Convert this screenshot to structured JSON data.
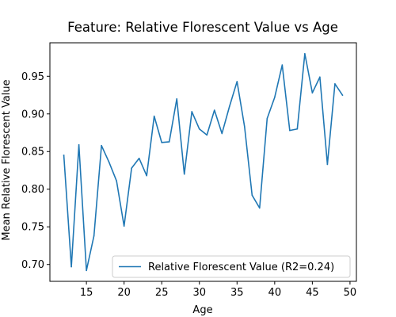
{
  "chart_data": {
    "type": "line",
    "title": "Feature: Relative Florescent Value vs Age",
    "xlabel": "Age",
    "ylabel": "Mean Relative Florescent Value",
    "xlim": [
      10.15,
      50.85
    ],
    "ylim": [
      0.6776,
      0.9945
    ],
    "xticks": [
      15,
      20,
      25,
      30,
      35,
      40,
      45,
      50
    ],
    "yticks": [
      0.7,
      0.75,
      0.8,
      0.85,
      0.9,
      0.95
    ],
    "xtick_labels": [
      "15",
      "20",
      "25",
      "30",
      "35",
      "40",
      "45",
      "50"
    ],
    "ytick_labels": [
      "0.70",
      "0.75",
      "0.80",
      "0.85",
      "0.90",
      "0.95"
    ],
    "grid": false,
    "legend": {
      "position": "lower-right"
    },
    "series": [
      {
        "name": "Relative Florescent Value (R2=0.24)",
        "color": "#1f77b4",
        "x": [
          12,
          13,
          14,
          15,
          16,
          17,
          18,
          19,
          20,
          21,
          22,
          23,
          24,
          25,
          26,
          27,
          28,
          29,
          30,
          31,
          32,
          33,
          34,
          35,
          36,
          37,
          38,
          39,
          40,
          41,
          42,
          43,
          44,
          45,
          46,
          47,
          48,
          49
        ],
        "y": [
          0.845,
          0.697,
          0.859,
          0.692,
          0.738,
          0.858,
          0.836,
          0.811,
          0.751,
          0.828,
          0.841,
          0.818,
          0.897,
          0.862,
          0.863,
          0.92,
          0.82,
          0.903,
          0.88,
          0.872,
          0.905,
          0.874,
          0.91,
          0.943,
          0.883,
          0.792,
          0.775,
          0.894,
          0.922,
          0.965,
          0.878,
          0.88,
          0.98,
          0.928,
          0.949,
          0.833,
          0.94,
          0.925
        ]
      }
    ]
  }
}
